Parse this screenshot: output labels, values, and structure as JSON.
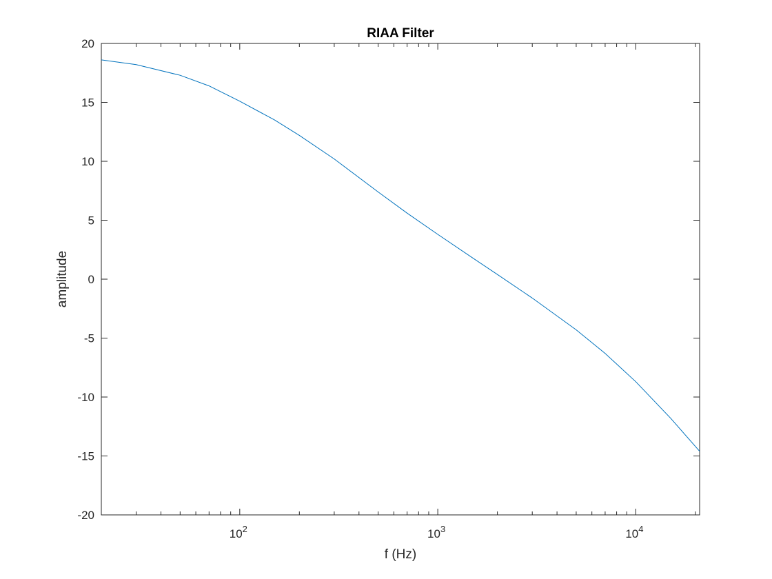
{
  "chart_data": {
    "type": "line",
    "title": "RIAA Filter",
    "xlabel": "f (Hz)",
    "ylabel": "amplitude",
    "xscale": "log",
    "xlim": [
      20,
      21000
    ],
    "ylim": [
      -20,
      20
    ],
    "grid": false,
    "legend": "none",
    "x_ticks": [
      {
        "base": "10",
        "exp": "2",
        "value": 100
      },
      {
        "base": "10",
        "exp": "3",
        "value": 1000
      },
      {
        "base": "10",
        "exp": "4",
        "value": 10000
      }
    ],
    "y_ticks": [
      {
        "label": "20",
        "value": 20
      },
      {
        "label": "15",
        "value": 15
      },
      {
        "label": "10",
        "value": 10
      },
      {
        "label": "5",
        "value": 5
      },
      {
        "label": "0",
        "value": 0
      },
      {
        "label": "-5",
        "value": -5
      },
      {
        "label": "-10",
        "value": -10
      },
      {
        "label": "-15",
        "value": -15
      },
      {
        "label": "-20",
        "value": -20
      }
    ],
    "series": [
      {
        "color": "#0072bd",
        "x": [
          20,
          30,
          50,
          70,
          100,
          150,
          200,
          300,
          500,
          700,
          1000,
          1500,
          2000,
          3000,
          5000,
          7000,
          10000,
          15000,
          21000
        ],
        "y": [
          18.6,
          18.2,
          17.3,
          16.4,
          15.1,
          13.5,
          12.2,
          10.2,
          7.4,
          5.6,
          3.8,
          1.8,
          0.4,
          -1.6,
          -4.3,
          -6.3,
          -8.7,
          -11.8,
          -14.6
        ]
      }
    ]
  }
}
